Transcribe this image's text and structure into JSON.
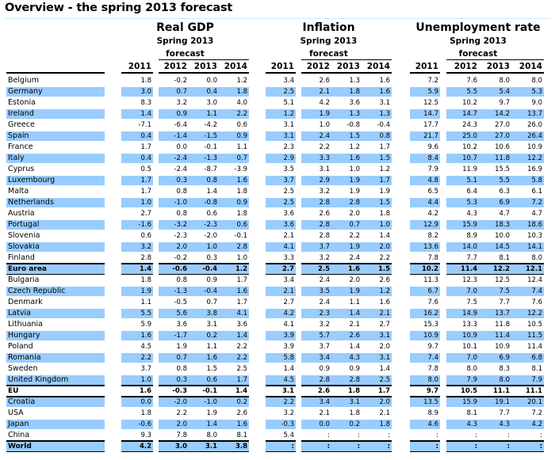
{
  "title": "Overview - the spring 2013 forecast",
  "groups": [
    {
      "label": "Real GDP",
      "sub1": "Spring 2013",
      "sub2": "forecast"
    },
    {
      "label": "Inflation",
      "sub1": "Spring 2013",
      "sub2": "forecast"
    },
    {
      "label": "Unemployment rate",
      "sub1": "Spring 2013",
      "sub2": "forecast"
    }
  ],
  "years": [
    "2011",
    "2012",
    "2013",
    "2014"
  ],
  "colors": {
    "shade": "#99ccff",
    "title_rule": "#bfefff"
  },
  "rows": [
    {
      "name": "Belgium",
      "gdp": [
        "1.8",
        "-0.2",
        "0.0",
        "1.2"
      ],
      "inf": [
        "3.4",
        "2.6",
        "1.3",
        "1.6"
      ],
      "unemp": [
        "7.2",
        "7.6",
        "8.0",
        "8.0"
      ]
    },
    {
      "name": "Germany",
      "gdp": [
        "3.0",
        "0.7",
        "0.4",
        "1.8"
      ],
      "inf": [
        "2.5",
        "2.1",
        "1.8",
        "1.6"
      ],
      "unemp": [
        "5.9",
        "5.5",
        "5.4",
        "5.3"
      ]
    },
    {
      "name": "Estonia",
      "gdp": [
        "8.3",
        "3.2",
        "3.0",
        "4.0"
      ],
      "inf": [
        "5.1",
        "4.2",
        "3.6",
        "3.1"
      ],
      "unemp": [
        "12.5",
        "10.2",
        "9.7",
        "9.0"
      ]
    },
    {
      "name": "Ireland",
      "gdp": [
        "1.4",
        "0.9",
        "1.1",
        "2.2"
      ],
      "inf": [
        "1.2",
        "1.9",
        "1.3",
        "1.3"
      ],
      "unemp": [
        "14.7",
        "14.7",
        "14.2",
        "13.7"
      ]
    },
    {
      "name": "Greece",
      "gdp": [
        "-7.1",
        "-6.4",
        "-4.2",
        "0.6"
      ],
      "inf": [
        "3.1",
        "1.0",
        "-0.8",
        "-0.4"
      ],
      "unemp": [
        "17.7",
        "24.3",
        "27.0",
        "26.0"
      ]
    },
    {
      "name": "Spain",
      "gdp": [
        "0.4",
        "-1.4",
        "-1.5",
        "0.9"
      ],
      "inf": [
        "3.1",
        "2.4",
        "1.5",
        "0.8"
      ],
      "unemp": [
        "21.7",
        "25.0",
        "27.0",
        "26.4"
      ]
    },
    {
      "name": "France",
      "gdp": [
        "1.7",
        "0.0",
        "-0.1",
        "1.1"
      ],
      "inf": [
        "2.3",
        "2.2",
        "1.2",
        "1.7"
      ],
      "unemp": [
        "9.6",
        "10.2",
        "10.6",
        "10.9"
      ]
    },
    {
      "name": "Italy",
      "gdp": [
        "0.4",
        "-2.4",
        "-1.3",
        "0.7"
      ],
      "inf": [
        "2.9",
        "3.3",
        "1.6",
        "1.5"
      ],
      "unemp": [
        "8.4",
        "10.7",
        "11.8",
        "12.2"
      ]
    },
    {
      "name": "Cyprus",
      "gdp": [
        "0.5",
        "-2.4",
        "-8.7",
        "-3.9"
      ],
      "inf": [
        "3.5",
        "3.1",
        "1.0",
        "1.2"
      ],
      "unemp": [
        "7.9",
        "11.9",
        "15.5",
        "16.9"
      ]
    },
    {
      "name": "Luxembourg",
      "gdp": [
        "1.7",
        "0.3",
        "0.8",
        "1.6"
      ],
      "inf": [
        "3.7",
        "2.9",
        "1.9",
        "1.7"
      ],
      "unemp": [
        "4.8",
        "5.1",
        "5.5",
        "5.8"
      ]
    },
    {
      "name": "Malta",
      "gdp": [
        "1.7",
        "0.8",
        "1.4",
        "1.8"
      ],
      "inf": [
        "2.5",
        "3.2",
        "1.9",
        "1.9"
      ],
      "unemp": [
        "6.5",
        "6.4",
        "6.3",
        "6.1"
      ]
    },
    {
      "name": "Netherlands",
      "gdp": [
        "1.0",
        "-1.0",
        "-0.8",
        "0.9"
      ],
      "inf": [
        "2.5",
        "2.8",
        "2.8",
        "1.5"
      ],
      "unemp": [
        "4.4",
        "5.3",
        "6.9",
        "7.2"
      ]
    },
    {
      "name": "Austria",
      "gdp": [
        "2.7",
        "0.8",
        "0.6",
        "1.8"
      ],
      "inf": [
        "3.6",
        "2.6",
        "2.0",
        "1.8"
      ],
      "unemp": [
        "4.2",
        "4.3",
        "4.7",
        "4.7"
      ]
    },
    {
      "name": "Portugal",
      "gdp": [
        "-1.6",
        "-3.2",
        "-2.3",
        "0.6"
      ],
      "inf": [
        "3.6",
        "2.8",
        "0.7",
        "1.0"
      ],
      "unemp": [
        "12.9",
        "15.9",
        "18.3",
        "18.6"
      ]
    },
    {
      "name": "Slovenia",
      "gdp": [
        "0.6",
        "-2.3",
        "-2.0",
        "-0.1"
      ],
      "inf": [
        "2.1",
        "2.8",
        "2.2",
        "1.4"
      ],
      "unemp": [
        "8.2",
        "8.9",
        "10.0",
        "10.3"
      ]
    },
    {
      "name": "Slovakia",
      "gdp": [
        "3.2",
        "2.0",
        "1.0",
        "2.8"
      ],
      "inf": [
        "4.1",
        "3.7",
        "1.9",
        "2.0"
      ],
      "unemp": [
        "13.6",
        "14.0",
        "14.5",
        "14.1"
      ]
    },
    {
      "name": "Finland",
      "gdp": [
        "2.8",
        "-0.2",
        "0.3",
        "1.0"
      ],
      "inf": [
        "3.3",
        "3.2",
        "2.4",
        "2.2"
      ],
      "unemp": [
        "7.8",
        "7.7",
        "8.1",
        "8.0"
      ]
    },
    {
      "name": "Euro area",
      "bold": true,
      "gdp": [
        "1.4",
        "-0.6",
        "-0.4",
        "1.2"
      ],
      "inf": [
        "2.7",
        "2.5",
        "1.6",
        "1.5"
      ],
      "unemp": [
        "10.2",
        "11.4",
        "12.2",
        "12.1"
      ]
    },
    {
      "name": "Bulgaria",
      "gdp": [
        "1.8",
        "0.8",
        "0.9",
        "1.7"
      ],
      "inf": [
        "3.4",
        "2.4",
        "2.0",
        "2.6"
      ],
      "unemp": [
        "11.3",
        "12.3",
        "12.5",
        "12.4"
      ]
    },
    {
      "name": "Czech Republic",
      "gdp": [
        "1.9",
        "-1.3",
        "-0.4",
        "1.6"
      ],
      "inf": [
        "2.1",
        "3.5",
        "1.9",
        "1.2"
      ],
      "unemp": [
        "6.7",
        "7.0",
        "7.5",
        "7.4"
      ]
    },
    {
      "name": "Denmark",
      "gdp": [
        "1.1",
        "-0.5",
        "0.7",
        "1.7"
      ],
      "inf": [
        "2.7",
        "2.4",
        "1.1",
        "1.6"
      ],
      "unemp": [
        "7.6",
        "7.5",
        "7.7",
        "7.6"
      ]
    },
    {
      "name": "Latvia",
      "gdp": [
        "5.5",
        "5.6",
        "3.8",
        "4.1"
      ],
      "inf": [
        "4.2",
        "2.3",
        "1.4",
        "2.1"
      ],
      "unemp": [
        "16.2",
        "14.9",
        "13.7",
        "12.2"
      ]
    },
    {
      "name": "Lithuania",
      "gdp": [
        "5.9",
        "3.6",
        "3.1",
        "3.6"
      ],
      "inf": [
        "4.1",
        "3.2",
        "2.1",
        "2.7"
      ],
      "unemp": [
        "15.3",
        "13.3",
        "11.8",
        "10.5"
      ]
    },
    {
      "name": "Hungary",
      "gdp": [
        "1.6",
        "-1.7",
        "0.2",
        "1.4"
      ],
      "inf": [
        "3.9",
        "5.7",
        "2.6",
        "3.1"
      ],
      "unemp": [
        "10.9",
        "10.9",
        "11.4",
        "11.5"
      ]
    },
    {
      "name": "Poland",
      "gdp": [
        "4.5",
        "1.9",
        "1.1",
        "2.2"
      ],
      "inf": [
        "3.9",
        "3.7",
        "1.4",
        "2.0"
      ],
      "unemp": [
        "9.7",
        "10.1",
        "10.9",
        "11.4"
      ]
    },
    {
      "name": "Romania",
      "gdp": [
        "2.2",
        "0.7",
        "1.6",
        "2.2"
      ],
      "inf": [
        "5.8",
        "3.4",
        "4.3",
        "3.1"
      ],
      "unemp": [
        "7.4",
        "7.0",
        "6.9",
        "6.8"
      ]
    },
    {
      "name": "Sweden",
      "gdp": [
        "3.7",
        "0.8",
        "1.5",
        "2.5"
      ],
      "inf": [
        "1.4",
        "0.9",
        "0.9",
        "1.4"
      ],
      "unemp": [
        "7.8",
        "8.0",
        "8.3",
        "8.1"
      ]
    },
    {
      "name": "United Kingdom",
      "gdp": [
        "1.0",
        "0.3",
        "0.6",
        "1.7"
      ],
      "inf": [
        "4.5",
        "2.8",
        "2.8",
        "2.5"
      ],
      "unemp": [
        "8.0",
        "7.9",
        "8.0",
        "7.9"
      ]
    },
    {
      "name": "EU",
      "bold": true,
      "gdp": [
        "1.6",
        "-0.3",
        "-0.1",
        "1.4"
      ],
      "inf": [
        "3.1",
        "2.6",
        "1.8",
        "1.7"
      ],
      "unemp": [
        "9.7",
        "10.5",
        "11.1",
        "11.1"
      ]
    },
    {
      "name": "Croatia",
      "gdp": [
        "0.0",
        "-2.0",
        "-1.0",
        "0.2"
      ],
      "inf": [
        "2.2",
        "3.4",
        "3.1",
        "2.0"
      ],
      "unemp": [
        "13.5",
        "15.9",
        "19.1",
        "20.1"
      ]
    },
    {
      "name": "USA",
      "gdp": [
        "1.8",
        "2.2",
        "1.9",
        "2.6"
      ],
      "inf": [
        "3.2",
        "2.1",
        "1.8",
        "2.1"
      ],
      "unemp": [
        "8.9",
        "8.1",
        "7.7",
        "7.2"
      ]
    },
    {
      "name": "Japan",
      "gdp": [
        "-0.6",
        "2.0",
        "1.4",
        "1.6"
      ],
      "inf": [
        "-0.3",
        "0.0",
        "0.2",
        "1.8"
      ],
      "unemp": [
        "4.6",
        "4.3",
        "4.3",
        "4.2"
      ]
    },
    {
      "name": "China",
      "gdp": [
        "9.3",
        "7.8",
        "8.0",
        "8.1"
      ],
      "inf": [
        "5.4",
        ":",
        ":",
        ":"
      ],
      "unemp": [
        ":",
        ":",
        ":",
        ":"
      ]
    },
    {
      "name": "World",
      "bold": true,
      "gdp": [
        "4.2",
        "3.0",
        "3.1",
        "3.8"
      ],
      "inf": [
        ":",
        ":",
        ":",
        ":"
      ],
      "unemp": [
        ":",
        ":",
        ":",
        ":"
      ]
    }
  ]
}
